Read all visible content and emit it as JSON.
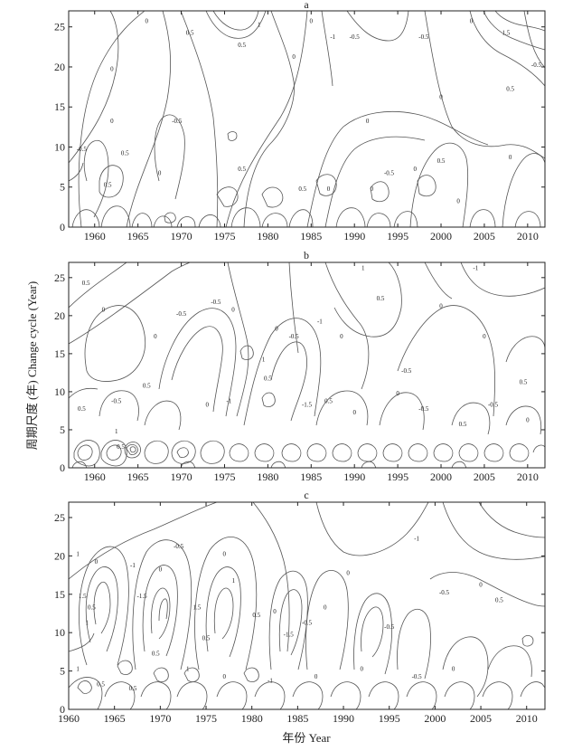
{
  "chart_data": {
    "type": "contour",
    "shared_ylabel": "周期尺度 (年) Change cycle (Year)",
    "shared_xlabel": "年份 Year",
    "panels": [
      {
        "label": "a",
        "xlim": [
          1957,
          2012
        ],
        "ylim": [
          0,
          27
        ],
        "xticks": [
          1960,
          1965,
          1970,
          1975,
          1980,
          1985,
          1990,
          1995,
          2000,
          2005,
          2010
        ],
        "yticks": [
          0,
          5,
          10,
          15,
          20,
          25
        ],
        "contour_levels": [
          -1.5,
          -1,
          -0.5,
          0,
          0.5,
          1,
          1.5
        ],
        "labels": [
          {
            "x": 1962,
            "y": 19.5,
            "text": "0"
          },
          {
            "x": 1966,
            "y": 25.5,
            "text": "0"
          },
          {
            "x": 1971,
            "y": 24,
            "text": "0.5"
          },
          {
            "x": 1977,
            "y": 22.5,
            "text": "0.5"
          },
          {
            "x": 1979,
            "y": 25,
            "text": "1"
          },
          {
            "x": 1983,
            "y": 21,
            "text": "0"
          },
          {
            "x": 1985,
            "y": 25.5,
            "text": "0"
          },
          {
            "x": 1987.5,
            "y": 23.5,
            "text": "-1"
          },
          {
            "x": 1990,
            "y": 23.5,
            "text": "-0.5"
          },
          {
            "x": 1998,
            "y": 23.5,
            "text": "-0.5"
          },
          {
            "x": 2000,
            "y": 16,
            "text": "0"
          },
          {
            "x": 2003.5,
            "y": 25.5,
            "text": "0"
          },
          {
            "x": 2007.5,
            "y": 24,
            "text": "1.5"
          },
          {
            "x": 2008,
            "y": 17,
            "text": "0.5"
          },
          {
            "x": 2011,
            "y": 20,
            "text": "-0.5"
          },
          {
            "x": 1969.5,
            "y": 13,
            "text": "-0.5"
          },
          {
            "x": 1962,
            "y": 13,
            "text": "0"
          },
          {
            "x": 1958.5,
            "y": 9.5,
            "text": "-0.5"
          },
          {
            "x": 1961.5,
            "y": 5,
            "text": "0.5"
          },
          {
            "x": 1963.5,
            "y": 9,
            "text": "0.5"
          },
          {
            "x": 1967.5,
            "y": 6.5,
            "text": "0"
          },
          {
            "x": 1977,
            "y": 7,
            "text": "0.5"
          },
          {
            "x": 1991.5,
            "y": 13,
            "text": "0"
          },
          {
            "x": 1994,
            "y": 6.5,
            "text": "-0.5"
          },
          {
            "x": 1997,
            "y": 7,
            "text": "0"
          },
          {
            "x": 2000,
            "y": 8,
            "text": "0.5"
          },
          {
            "x": 2008,
            "y": 8.5,
            "text": "0"
          },
          {
            "x": 2002,
            "y": 3,
            "text": "0"
          },
          {
            "x": 1984,
            "y": 4.5,
            "text": "0.5"
          },
          {
            "x": 1987,
            "y": 4.5,
            "text": "0"
          },
          {
            "x": 1992,
            "y": 4.5,
            "text": "0"
          }
        ]
      },
      {
        "label": "b",
        "xlim": [
          1957,
          2012
        ],
        "ylim": [
          0,
          27
        ],
        "xticks": [
          1960,
          1965,
          1970,
          1975,
          1980,
          1985,
          1990,
          1995,
          2000,
          2005,
          2010
        ],
        "yticks": [
          0,
          5,
          10,
          15,
          20,
          25
        ],
        "contour_levels": [
          -1.5,
          -1,
          -0.5,
          0,
          0.5,
          1,
          1.5
        ],
        "labels": [
          {
            "x": 1959,
            "y": 24,
            "text": "0.5"
          },
          {
            "x": 1961,
            "y": 20.5,
            "text": "0"
          },
          {
            "x": 1967,
            "y": 17,
            "text": "0"
          },
          {
            "x": 1970,
            "y": 20,
            "text": "-0.5"
          },
          {
            "x": 1974,
            "y": 21.5,
            "text": "-0.5"
          },
          {
            "x": 1976,
            "y": 20.5,
            "text": "0"
          },
          {
            "x": 1979.5,
            "y": 14,
            "text": "1"
          },
          {
            "x": 1981,
            "y": 18,
            "text": "0"
          },
          {
            "x": 1983,
            "y": 17,
            "text": "-0.5"
          },
          {
            "x": 1986,
            "y": 19,
            "text": "-1"
          },
          {
            "x": 1988.5,
            "y": 17,
            "text": "0"
          },
          {
            "x": 1991,
            "y": 26,
            "text": "1"
          },
          {
            "x": 1993,
            "y": 22,
            "text": "0.5"
          },
          {
            "x": 1996,
            "y": 12.5,
            "text": "-0.5"
          },
          {
            "x": 2000,
            "y": 21,
            "text": "0"
          },
          {
            "x": 2004,
            "y": 26,
            "text": "-1"
          },
          {
            "x": 2005,
            "y": 17,
            "text": "0"
          },
          {
            "x": 2009.5,
            "y": 11,
            "text": "0.5"
          },
          {
            "x": 1958.5,
            "y": 7.5,
            "text": "0.5"
          },
          {
            "x": 1962.5,
            "y": 8.5,
            "text": "-0.5"
          },
          {
            "x": 1962.5,
            "y": 4.5,
            "text": "1"
          },
          {
            "x": 1963,
            "y": 2.5,
            "text": "0.5"
          },
          {
            "x": 1966,
            "y": 10.5,
            "text": "0.5"
          },
          {
            "x": 1973,
            "y": 8,
            "text": "0"
          },
          {
            "x": 1975.5,
            "y": 8.5,
            "text": "-1"
          },
          {
            "x": 1980,
            "y": 11.5,
            "text": "0.5"
          },
          {
            "x": 1984.5,
            "y": 8,
            "text": "-1.5"
          },
          {
            "x": 1987,
            "y": 8.5,
            "text": "0.5"
          },
          {
            "x": 1990,
            "y": 7,
            "text": "0"
          },
          {
            "x": 1995,
            "y": 9.5,
            "text": "0"
          },
          {
            "x": 1998,
            "y": 7.5,
            "text": "-0.5"
          },
          {
            "x": 2002.5,
            "y": 5.5,
            "text": "0.5"
          },
          {
            "x": 2006,
            "y": 8,
            "text": "-0.5"
          },
          {
            "x": 2010,
            "y": 6,
            "text": "0"
          }
        ]
      },
      {
        "label": "c",
        "xlim": [
          1960,
          2012
        ],
        "ylim": [
          0,
          27
        ],
        "xticks": [
          1960,
          1965,
          1970,
          1975,
          1980,
          1985,
          1990,
          1995,
          2000,
          2005,
          2010
        ],
        "yticks": [
          0,
          5,
          10,
          15,
          20,
          25
        ],
        "contour_levels": [
          -1.5,
          -1,
          -0.5,
          0,
          0.5,
          1,
          1.5
        ],
        "labels": [
          {
            "x": 1961,
            "y": 20,
            "text": "1"
          },
          {
            "x": 1963,
            "y": 19,
            "text": "0"
          },
          {
            "x": 1962,
            "y": 11,
            "text": "1"
          },
          {
            "x": 1961.5,
            "y": 14.5,
            "text": "1.5"
          },
          {
            "x": 1962.5,
            "y": 13,
            "text": "0.5"
          },
          {
            "x": 1967,
            "y": 18.5,
            "text": "-1"
          },
          {
            "x": 1968,
            "y": 14.5,
            "text": "-1.5"
          },
          {
            "x": 1970,
            "y": 18,
            "text": "0"
          },
          {
            "x": 1972,
            "y": 21,
            "text": "-0.5"
          },
          {
            "x": 1977,
            "y": 20,
            "text": "0"
          },
          {
            "x": 1978,
            "y": 16.5,
            "text": "1"
          },
          {
            "x": 1974,
            "y": 13,
            "text": "1.5"
          },
          {
            "x": 1975,
            "y": 9,
            "text": "0.5"
          },
          {
            "x": 1980.5,
            "y": 12,
            "text": "0.5"
          },
          {
            "x": 1982.5,
            "y": 12.5,
            "text": "0"
          },
          {
            "x": 1984,
            "y": 9.5,
            "text": "-1.5"
          },
          {
            "x": 1986,
            "y": 11,
            "text": "-0.5"
          },
          {
            "x": 1988,
            "y": 13,
            "text": "0"
          },
          {
            "x": 1990.5,
            "y": 17.5,
            "text": "0"
          },
          {
            "x": 1995,
            "y": 10.5,
            "text": "-0.5"
          },
          {
            "x": 1998,
            "y": 22,
            "text": "-1"
          },
          {
            "x": 2001,
            "y": 15,
            "text": "-0.5"
          },
          {
            "x": 2005,
            "y": 16,
            "text": "0"
          },
          {
            "x": 2007,
            "y": 14,
            "text": "0.5"
          },
          {
            "x": 1961,
            "y": 5,
            "text": "1"
          },
          {
            "x": 1963.5,
            "y": 3,
            "text": "0.5"
          },
          {
            "x": 1967,
            "y": 2.5,
            "text": "0.5"
          },
          {
            "x": 1969.5,
            "y": 7,
            "text": "0.5"
          },
          {
            "x": 1973,
            "y": 5,
            "text": "1"
          },
          {
            "x": 1977,
            "y": 4,
            "text": "0"
          },
          {
            "x": 1982,
            "y": 3.5,
            "text": "-1"
          },
          {
            "x": 1987,
            "y": 4,
            "text": "0"
          },
          {
            "x": 1992,
            "y": 5,
            "text": "0"
          },
          {
            "x": 1998,
            "y": 4,
            "text": "-0.5"
          },
          {
            "x": 2002,
            "y": 5,
            "text": "0"
          }
        ]
      }
    ]
  }
}
